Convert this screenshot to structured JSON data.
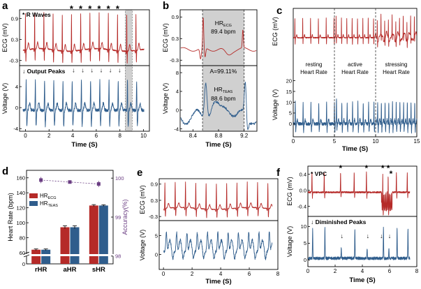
{
  "colors": {
    "red": "#b52a28",
    "blue": "#2f5d8c",
    "purple": "#6a3d82",
    "shade": "#d0d0d0",
    "border": "#000000"
  },
  "chart_data": [
    {
      "id": "a",
      "type": "line",
      "panel_label": "a",
      "ylabel_top": "ECG (mV)",
      "ylabel_bottom": "Voltage (V)",
      "xlabel": "Time (S)",
      "xlim": [
        -0.5,
        10.5
      ],
      "xticks": [
        0,
        2,
        4,
        6,
        8,
        10
      ],
      "ylim_top": [
        -0.45,
        1.15
      ],
      "yticks_top": [
        -0.3,
        0.3,
        0.9
      ],
      "ylim_bottom": [
        -4.5,
        8.0
      ],
      "yticks_bottom": [
        -4,
        0,
        4
      ],
      "ecg_r_peaks_s": [
        0.0,
        0.78,
        1.56,
        2.34,
        3.12,
        3.9,
        4.68,
        5.46,
        6.24,
        7.02,
        7.8,
        8.58,
        9.36
      ],
      "starred_r_peaks_s": [
        3.9,
        4.68,
        5.46,
        6.24,
        7.02,
        7.8
      ],
      "arrowed_output_peaks_s": [
        3.9,
        4.68,
        5.46,
        6.24,
        7.02,
        7.8
      ],
      "highlight_span_s": [
        8.45,
        9.05
      ],
      "legend_top": "R Waves",
      "legend_top_marker": "*",
      "legend_bottom": "Output Peaks",
      "legend_bottom_marker": "↓"
    },
    {
      "id": "b",
      "type": "line",
      "panel_label": "b",
      "ylabel_top": "ECG (mV)",
      "ylabel_bottom": "Voltage (V)",
      "xlabel": "Time (S)",
      "xlim": [
        8.2,
        9.4
      ],
      "xticks": [
        8.4,
        8.8,
        9.2
      ],
      "ylim_top": [
        -0.45,
        1.1
      ],
      "yticks_top": [
        -0.3,
        0.3,
        0.9
      ],
      "ylim_bottom": [
        -4.5,
        9.5
      ],
      "yticks_bottom": [
        -4,
        0,
        4,
        8
      ],
      "highlight_span_s": [
        8.55,
        9.2
      ],
      "hr_ecg_label": "HR",
      "hr_ecg_sub": "ECG",
      "hr_ecg_value": "89.4 bpm",
      "hr_teas_label": "HR",
      "hr_teas_sub": "TEAS",
      "hr_teas_value": "88.6 bpm",
      "accuracy_text": "A=99.11%"
    },
    {
      "id": "c",
      "type": "line",
      "panel_label": "c",
      "ylabel_top": "ECG (mV)",
      "ylabel_bottom": "Voltage (V)",
      "xlabel": "Time (S)",
      "xlim": [
        0,
        15
      ],
      "xticks": [
        0,
        5,
        10,
        15
      ],
      "ylim_bottom": [
        -6,
        25
      ],
      "yticks_bottom": [
        0,
        5,
        10,
        15,
        20
      ],
      "segment_boundaries_s": [
        5,
        10
      ],
      "segments": [
        {
          "label_line1": "resting",
          "label_line2": "Heart Rate",
          "beat_interval_s": 0.95
        },
        {
          "label_line1": "active",
          "label_line2": "Heart Rate",
          "beat_interval_s": 0.65
        },
        {
          "label_line1": "stressing",
          "label_line2": "Heart Rate",
          "beat_interval_s": 0.45
        }
      ]
    },
    {
      "id": "d",
      "type": "bar",
      "panel_label": "d",
      "categories": [
        "rHR",
        "aHR",
        "sHR"
      ],
      "ylabel": "Heart Rate (bpm)",
      "ylabel2": "Accuracy(%)",
      "yticks_left": [
        60,
        80,
        100,
        120,
        140,
        160
      ],
      "yticks_right": [
        98,
        99,
        100
      ],
      "ylim_left": [
        55,
        170
      ],
      "ylim_right": [
        97.8,
        100.2
      ],
      "series": [
        {
          "name": "HR",
          "sub": "ECG",
          "values": [
            64,
            94,
            123
          ],
          "errors": [
            1.0,
            2.0,
            1.2
          ]
        },
        {
          "name": "HR",
          "sub": "TEAS",
          "values": [
            64,
            94,
            123
          ],
          "errors": [
            1.0,
            2.0,
            1.0
          ]
        }
      ],
      "accuracy": {
        "values": [
          99.95,
          99.9,
          99.85
        ],
        "errors": [
          0.08,
          0.03,
          0.08
        ]
      }
    },
    {
      "id": "e",
      "type": "line",
      "panel_label": "e",
      "ylabel_top": "ECG (mV)",
      "ylabel_bottom": "Voltage (V)",
      "xlabel": "Time (S)",
      "xlim": [
        -0.3,
        8.0
      ],
      "xticks": [
        0,
        2,
        4,
        6,
        8
      ],
      "ylim_top": [
        -0.45,
        1.1
      ],
      "yticks_top": [
        -0.3,
        0.3,
        0.9
      ],
      "ylim_bottom": [
        -4,
        9
      ],
      "yticks_bottom": [
        0,
        5
      ]
    },
    {
      "id": "f",
      "type": "line",
      "panel_label": "f",
      "ylabel_top": "ECG (mV)",
      "ylabel_bottom": "Voltage (V)",
      "xlabel": "Time (S)",
      "xlim": [
        0,
        8
      ],
      "xticks": [
        0,
        2,
        4,
        6,
        8
      ],
      "ylim_top": [
        -0.65,
        0.6
      ],
      "yticks_top": [
        -0.4,
        0.0,
        0.4
      ],
      "ylim_bottom": [
        -2,
        13
      ],
      "yticks_bottom": [
        0,
        5,
        10
      ],
      "ecg_r_peaks_s": [
        0.3,
        1.2,
        2.4,
        3.4,
        4.3,
        5.5,
        5.9,
        6.5,
        7.3
      ],
      "vpc_s": [
        2.4,
        4.3,
        5.5,
        5.9,
        6.1
      ],
      "diminished_peaks_s": [
        2.4,
        4.3,
        5.3,
        5.9
      ],
      "legend_top": "VPC",
      "legend_top_marker": "*",
      "legend_bottom": "Diminished Peaks",
      "legend_bottom_marker": "↓"
    }
  ]
}
